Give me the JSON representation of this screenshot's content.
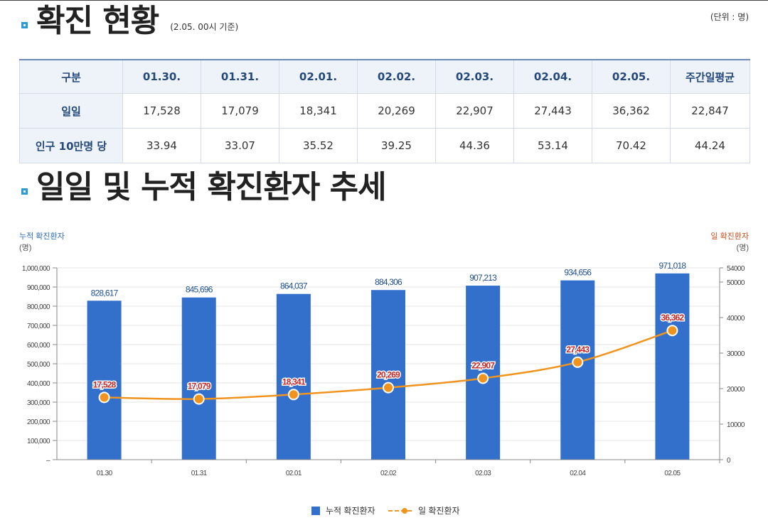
{
  "section1": {
    "title": "확진 현황",
    "note": "(2.05. 00시 기준)",
    "unit": "(단위 : 명)"
  },
  "table": {
    "headers": [
      "구분",
      "01.30.",
      "01.31.",
      "02.01.",
      "02.02.",
      "02.03.",
      "02.04.",
      "02.05.",
      "주간일평균"
    ],
    "rows": [
      {
        "label": "일일",
        "cells": [
          "17,528",
          "17,079",
          "18,341",
          "20,269",
          "22,907",
          "27,443",
          "36,362",
          "22,847"
        ]
      },
      {
        "label": "인구 10만명 당",
        "cells": [
          "33.94",
          "33.07",
          "35.52",
          "39.25",
          "44.36",
          "53.14",
          "70.42",
          "44.24"
        ]
      }
    ]
  },
  "section2": {
    "title": "일일 및 누적 확진환자 추세"
  },
  "colors": {
    "bar": "#3370cc",
    "line": "#f0941f",
    "left_axis": "#2e6bb5",
    "right_axis": "#c8501f",
    "label_red": "#c62828"
  },
  "chart_data": {
    "type": "bar+line",
    "categories": [
      "01.30",
      "01.31",
      "02.01",
      "02.02",
      "02.03",
      "02.04",
      "02.05"
    ],
    "series": [
      {
        "name": "누적 확진환자",
        "type": "bar",
        "axis": "left",
        "values": [
          828617,
          845696,
          864037,
          884306,
          907213,
          934656,
          971018
        ],
        "labels": [
          "828,617",
          "845,696",
          "864,037",
          "884,306",
          "907,213",
          "934,656",
          "971,018"
        ]
      },
      {
        "name": "일 확진환자",
        "type": "line",
        "axis": "right",
        "values": [
          17528,
          17079,
          18341,
          20269,
          22907,
          27443,
          36362
        ],
        "labels": [
          "17,528",
          "17,079",
          "18,341",
          "20,269",
          "22,907",
          "27,443",
          "36,362"
        ]
      }
    ],
    "left_axis": {
      "title": "누적 확진환자",
      "unit": "(명)",
      "ylim": [
        0,
        1000000
      ],
      "ticks": [
        "–",
        "100,000",
        "200,000",
        "300,000",
        "400,000",
        "500,000",
        "600,000",
        "700,000",
        "800,000",
        "900,000",
        "1,000,000"
      ]
    },
    "right_axis": {
      "title": "일 확진환자",
      "unit": "(명)",
      "ylim": [
        0,
        54000
      ],
      "ticks": [
        "0",
        "10000",
        "20000",
        "30000",
        "40000",
        "50000",
        "54000"
      ]
    },
    "grid": true,
    "legend": "bottom-center"
  }
}
